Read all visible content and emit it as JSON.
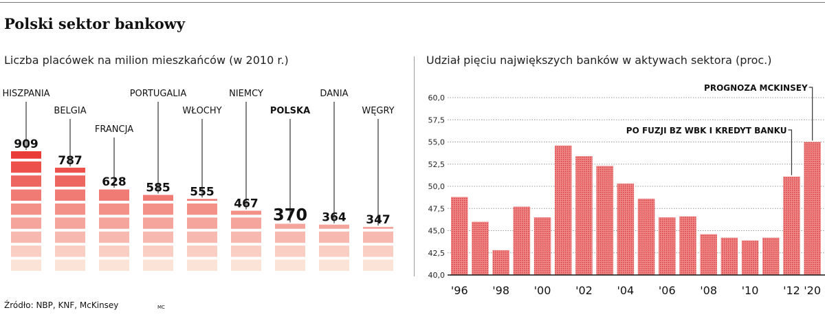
{
  "header": {
    "title": "Polski sektor bankowy"
  },
  "footer": {
    "source": "Źródło: NBP, KNF, McKinsey",
    "credit": "MC"
  },
  "chart_data": [
    {
      "type": "bar",
      "title": "Liczba placówek na milion mieszkańców (w 2010 r.)",
      "categories": [
        "HISZPANIA",
        "BELGIA",
        "FRANCJA",
        "PORTUGALIA",
        "WŁOCHY",
        "NIEMCY",
        "POLSKA",
        "DANIA",
        "WĘGRY"
      ],
      "values": [
        909,
        787,
        628,
        585,
        555,
        467,
        370,
        364,
        347
      ],
      "value_labels": [
        "909",
        "787",
        "628",
        "585",
        "555",
        "467",
        "370",
        "364",
        "347"
      ],
      "highlight": "POLSKA",
      "colors": {
        "top": "#e8322e",
        "bottom": "#fce3d7",
        "label": "#111111"
      }
    },
    {
      "type": "bar",
      "title": "Udział pięciu największych banków w aktywach sektora (proc.)",
      "x": [
        "1996",
        "1997",
        "1998",
        "1999",
        "2000",
        "2001",
        "2002",
        "2003",
        "2004",
        "2005",
        "2006",
        "2007",
        "2008",
        "2009",
        "2010",
        "2011",
        "2012",
        "2020"
      ],
      "values": [
        48.8,
        46.0,
        42.8,
        47.7,
        46.5,
        54.6,
        53.4,
        52.3,
        50.3,
        48.6,
        46.5,
        46.6,
        44.6,
        44.2,
        43.9,
        44.2,
        51.1,
        55.0
      ],
      "ylim": [
        40.0,
        60.0
      ],
      "yticks": [
        "40,0",
        "42,5",
        "45,0",
        "47,5",
        "50,0",
        "52,5",
        "55,0",
        "57,5",
        "60,0"
      ],
      "xtick_labels": [
        "'96",
        "'98",
        "'00",
        "'02",
        "'04",
        "'06",
        "'08",
        "'10",
        "'12",
        "'20"
      ],
      "xtick_years": [
        1996,
        1998,
        2000,
        2002,
        2004,
        2006,
        2008,
        2010,
        2012,
        2020
      ],
      "grid": true,
      "annotations": [
        {
          "text": "PROGNOZA MCKINSEY",
          "x": "2020"
        },
        {
          "text": "PO FUZJI BZ WBK I KREDYT BANKU",
          "x": "2012"
        }
      ],
      "colors": {
        "bar": "#f08a8a",
        "bar_dots": "#d94545",
        "grid": "#999999"
      }
    }
  ]
}
